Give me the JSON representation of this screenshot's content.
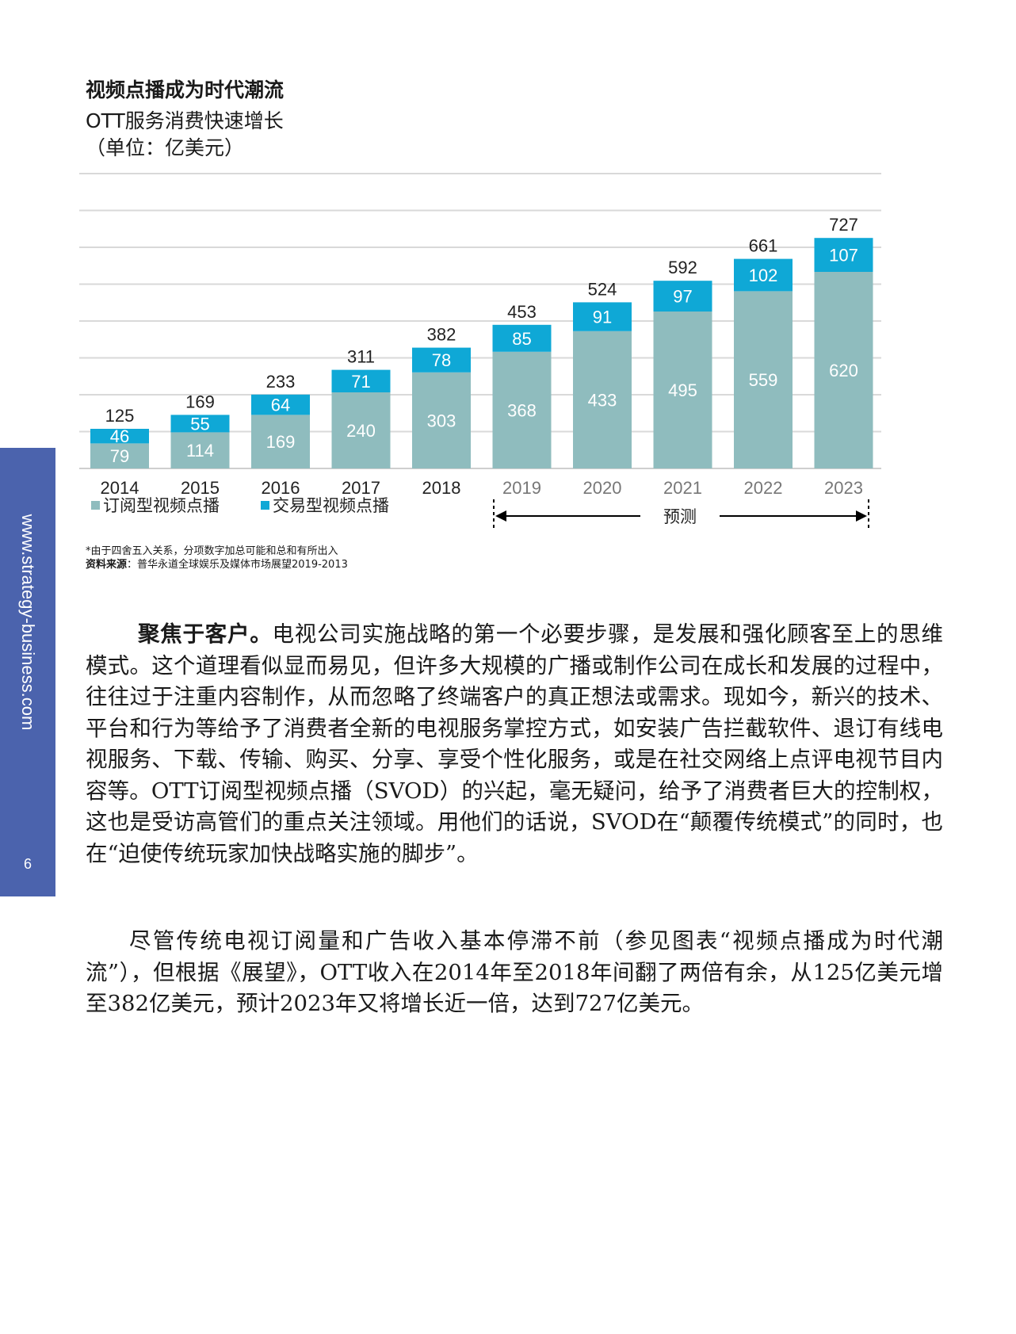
{
  "sidebar": {
    "url": "www.strategy-business.com",
    "page_number": "6"
  },
  "figure": {
    "title": "视频点播成为时代潮流",
    "subtitle": "OTT服务消费快速增长",
    "unit": "（单位：亿美元）",
    "footnote": "*由于四舍五入关系，分项数字加总可能和总和有所出入",
    "source_label": "资料来源",
    "source_text": "：普华永道全球娱乐及媒体市场展望2019-2013"
  },
  "chart_data": {
    "type": "bar",
    "stacked": true,
    "categories": [
      "2014",
      "2015",
      "2016",
      "2017",
      "2018",
      "2019",
      "2020",
      "2021",
      "2022",
      "2023"
    ],
    "series": [
      {
        "name": "订阅型视频点播",
        "color": "#8fbcbe",
        "values": [
          79,
          114,
          169,
          240,
          303,
          368,
          433,
          495,
          559,
          620
        ]
      },
      {
        "name": "交易型视频点播",
        "color": "#0fa8d6",
        "values": [
          46,
          55,
          64,
          71,
          78,
          85,
          91,
          97,
          102,
          107
        ]
      }
    ],
    "totals": [
      125,
      169,
      233,
      311,
      382,
      453,
      524,
      592,
      661,
      727
    ],
    "forecast_label": "预测",
    "forecast_start_index": 5,
    "ylim": [
      0,
      800
    ],
    "grid": true,
    "legend": "bottom-left"
  },
  "article": {
    "p1_lead": "聚焦于客户。",
    "p1_text": "电视公司实施战略的第一个必要步骤，是发展和强化顾客至上的思维模式。这个道理看似显而易见，但许多大规模的广播或制作公司在成长和发展的过程中，往往过于注重内容制作，从而忽略了终端客户的真正想法或需求。现如今，新兴的技术、平台和行为等给予了消费者全新的电视服务掌控方式，如安装广告拦截软件、退订有线电视服务、下载、传输、购买、分享、享受个性化服务，或是在社交网络上点评电视节目内容等。OTT订阅型视频点播（SVOD）的兴起，毫无疑问，给予了消费者巨大的控制权，这也是受访高管们的重点关注领域。用他们的话说，SVOD在“颠覆传统模式”的同时，也在“迫使传统玩家加快战略实施的脚步”。",
    "p2_text": "尽管传统电视订阅量和广告收入基本停滞不前（参见图表“视频点播成为时代潮流”），但根据《展望》，OTT收入在2014年至2018年间翻了两倍有余，从125亿美元增至382亿美元，预计2023年又将增长近一倍，达到727亿美元。"
  }
}
